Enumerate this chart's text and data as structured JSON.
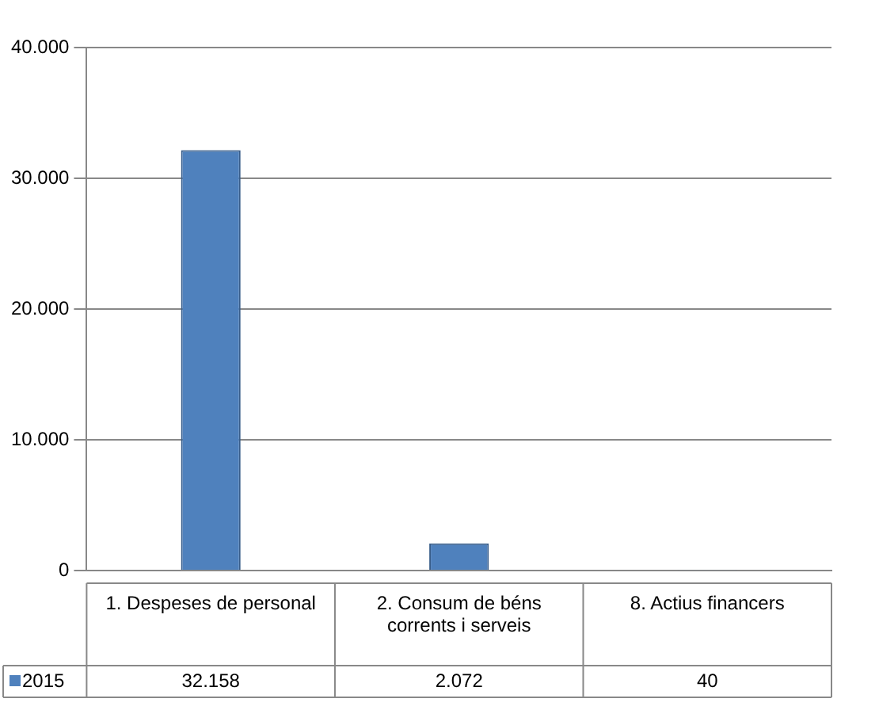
{
  "chart_data": {
    "type": "bar",
    "categories": [
      "1. Despeses de personal",
      "2. Consum de béns corrents i serveis",
      "8. Actius financers"
    ],
    "series": [
      {
        "name": "2015",
        "color": "#4f81bd",
        "values": [
          32158,
          2072,
          40
        ]
      }
    ],
    "value_labels": [
      "32.158",
      "2.072",
      "40"
    ],
    "ylim": [
      0,
      40000
    ],
    "yticks": [
      {
        "value": 0,
        "label": "0"
      },
      {
        "value": 10000,
        "label": "10.000"
      },
      {
        "value": 20000,
        "label": "20.000"
      },
      {
        "value": 30000,
        "label": "30.000"
      },
      {
        "value": 40000,
        "label": "40.000"
      }
    ],
    "grid": "y",
    "legend": "bottom left"
  }
}
